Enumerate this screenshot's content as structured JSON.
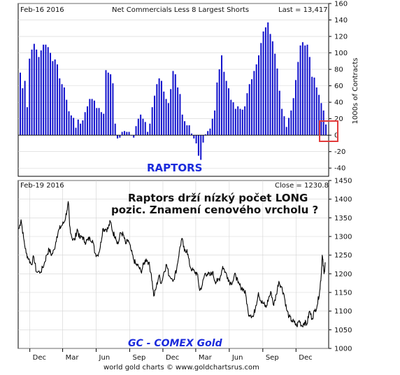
{
  "colors": {
    "bars": "#1212cc",
    "price_line": "#000000",
    "highlight_box": "#e23b3b",
    "annotation_blue": "#1b2bdc",
    "grid": "#d3d3d3"
  },
  "top_panel": {
    "date": "Feb-16  2016",
    "title": "Net Commercials Less 8 Largest Shorts",
    "last": "Last = 13,417",
    "ylabel": "1000s of Contracts",
    "annotation": "RAPTORS"
  },
  "bottom_panel": {
    "date": "Feb-19  2016",
    "close": "Close = 1230.8",
    "annotation_line1": "Raptors drží nízký počet LONG",
    "annotation_line2": "pozic. Znamení cenového vrcholu ?",
    "series_label": "GC - COMEX Gold"
  },
  "footer": "world gold charts © www.goldchartsrus.com",
  "chart_data": [
    {
      "type": "bar",
      "title": "Net Commercials Less 8 Largest Shorts",
      "ylabel": "1000s of Contracts",
      "ylim": [
        -50,
        160
      ],
      "yticks": [
        -40,
        -20,
        0,
        20,
        40,
        60,
        80,
        100,
        120,
        140,
        160
      ],
      "grid": true,
      "x_start": "2013-11-12",
      "x_end": "2016-02-16",
      "x_interval": "weekly",
      "values": [
        76,
        57,
        66,
        34,
        93,
        104,
        111,
        104,
        95,
        103,
        110,
        110,
        107,
        100,
        90,
        92,
        86,
        69,
        62,
        58,
        43,
        29,
        24,
        21,
        9,
        19,
        14,
        18,
        28,
        35,
        44,
        44,
        42,
        33,
        33,
        28,
        26,
        79,
        76,
        74,
        63,
        14,
        -4,
        -3,
        4,
        5,
        4,
        4,
        0,
        -3,
        11,
        20,
        25,
        20,
        16,
        4,
        14,
        34,
        48,
        62,
        69,
        66,
        53,
        44,
        39,
        56,
        78,
        74,
        58,
        50,
        25,
        17,
        12,
        12,
        2,
        -4,
        -10,
        -25,
        -30,
        -9,
        1,
        5,
        8,
        20,
        30,
        64,
        80,
        97,
        77,
        66,
        57,
        43,
        40,
        32,
        35,
        32,
        31,
        35,
        51,
        62,
        68,
        78,
        86,
        97,
        112,
        126,
        131,
        137,
        123,
        114,
        99,
        81,
        54,
        32,
        23,
        10,
        21,
        30,
        45,
        67,
        89,
        109,
        113,
        109,
        110,
        95,
        71,
        70,
        58,
        49,
        39,
        30,
        13
      ],
      "last": 13.417
    },
    {
      "type": "line",
      "series": [
        {
          "name": "GC - COMEX Gold"
        }
      ],
      "ylim": [
        1000,
        1450
      ],
      "yticks": [
        1000,
        1050,
        1100,
        1150,
        1200,
        1250,
        1300,
        1350,
        1400,
        1450
      ],
      "grid": true,
      "x_tick_labels": [
        "Dec",
        "Mar",
        "Jun",
        "Sep",
        "Dec",
        "Mar",
        "Jun",
        "Sep",
        "Dec"
      ],
      "close": 1230.8,
      "points": [
        [
          "2013-11-01",
          1320
        ],
        [
          "2013-11-07",
          1345
        ],
        [
          "2013-11-14",
          1295
        ],
        [
          "2013-11-21",
          1255
        ],
        [
          "2013-11-28",
          1240
        ],
        [
          "2013-12-05",
          1225
        ],
        [
          "2013-12-12",
          1245
        ],
        [
          "2013-12-19",
          1205
        ],
        [
          "2013-12-31",
          1205
        ],
        [
          "2014-01-09",
          1225
        ],
        [
          "2014-01-16",
          1250
        ],
        [
          "2014-01-23",
          1265
        ],
        [
          "2014-01-30",
          1250
        ],
        [
          "2014-02-06",
          1265
        ],
        [
          "2014-02-13",
          1300
        ],
        [
          "2014-02-20",
          1320
        ],
        [
          "2014-02-27",
          1330
        ],
        [
          "2014-03-06",
          1340
        ],
        [
          "2014-03-13",
          1370
        ],
        [
          "2014-03-17",
          1390
        ],
        [
          "2014-03-20",
          1330
        ],
        [
          "2014-03-27",
          1295
        ],
        [
          "2014-04-03",
          1290
        ],
        [
          "2014-04-10",
          1320
        ],
        [
          "2014-04-17",
          1295
        ],
        [
          "2014-04-24",
          1300
        ],
        [
          "2014-05-01",
          1285
        ],
        [
          "2014-05-08",
          1290
        ],
        [
          "2014-05-15",
          1295
        ],
        [
          "2014-05-22",
          1290
        ],
        [
          "2014-05-29",
          1255
        ],
        [
          "2014-06-05",
          1250
        ],
        [
          "2014-06-12",
          1270
        ],
        [
          "2014-06-19",
          1320
        ],
        [
          "2014-06-26",
          1320
        ],
        [
          "2014-07-03",
          1320
        ],
        [
          "2014-07-10",
          1340
        ],
        [
          "2014-07-17",
          1310
        ],
        [
          "2014-07-24",
          1300
        ],
        [
          "2014-07-31",
          1280
        ],
        [
          "2014-08-07",
          1310
        ],
        [
          "2014-08-14",
          1305
        ],
        [
          "2014-08-21",
          1280
        ],
        [
          "2014-08-28",
          1290
        ],
        [
          "2014-09-04",
          1265
        ],
        [
          "2014-09-11",
          1240
        ],
        [
          "2014-09-18",
          1225
        ],
        [
          "2014-09-25",
          1220
        ],
        [
          "2014-10-02",
          1205
        ],
        [
          "2014-10-09",
          1225
        ],
        [
          "2014-10-16",
          1240
        ],
        [
          "2014-10-23",
          1230
        ],
        [
          "2014-10-30",
          1200
        ],
        [
          "2014-11-06",
          1140
        ],
        [
          "2014-11-13",
          1165
        ],
        [
          "2014-11-20",
          1195
        ],
        [
          "2014-11-27",
          1175
        ],
        [
          "2014-12-04",
          1205
        ],
        [
          "2014-12-11",
          1225
        ],
        [
          "2014-12-18",
          1195
        ],
        [
          "2014-12-31",
          1185
        ],
        [
          "2015-01-08",
          1215
        ],
        [
          "2015-01-15",
          1260
        ],
        [
          "2015-01-22",
          1295
        ],
        [
          "2015-01-29",
          1260
        ],
        [
          "2015-02-05",
          1265
        ],
        [
          "2015-02-12",
          1225
        ],
        [
          "2015-02-19",
          1210
        ],
        [
          "2015-02-26",
          1205
        ],
        [
          "2015-03-05",
          1200
        ],
        [
          "2015-03-12",
          1155
        ],
        [
          "2015-03-19",
          1170
        ],
        [
          "2015-03-26",
          1200
        ],
        [
          "2015-04-02",
          1200
        ],
        [
          "2015-04-09",
          1195
        ],
        [
          "2015-04-16",
          1205
        ],
        [
          "2015-04-23",
          1180
        ],
        [
          "2015-04-30",
          1180
        ],
        [
          "2015-05-07",
          1190
        ],
        [
          "2015-05-14",
          1220
        ],
        [
          "2015-05-21",
          1205
        ],
        [
          "2015-05-28",
          1190
        ],
        [
          "2015-06-04",
          1175
        ],
        [
          "2015-06-11",
          1180
        ],
        [
          "2015-06-18",
          1200
        ],
        [
          "2015-06-25",
          1175
        ],
        [
          "2015-07-02",
          1165
        ],
        [
          "2015-07-09",
          1160
        ],
        [
          "2015-07-16",
          1145
        ],
        [
          "2015-07-23",
          1095
        ],
        [
          "2015-07-30",
          1090
        ],
        [
          "2015-08-06",
          1085
        ],
        [
          "2015-08-13",
          1115
        ],
        [
          "2015-08-20",
          1150
        ],
        [
          "2015-08-27",
          1125
        ],
        [
          "2015-09-03",
          1120
        ],
        [
          "2015-09-10",
          1110
        ],
        [
          "2015-09-17",
          1135
        ],
        [
          "2015-09-24",
          1150
        ],
        [
          "2015-10-01",
          1115
        ],
        [
          "2015-10-08",
          1145
        ],
        [
          "2015-10-15",
          1180
        ],
        [
          "2015-10-22",
          1165
        ],
        [
          "2015-10-29",
          1145
        ],
        [
          "2015-11-05",
          1105
        ],
        [
          "2015-11-12",
          1085
        ],
        [
          "2015-11-19",
          1075
        ],
        [
          "2015-11-26",
          1070
        ],
        [
          "2015-12-03",
          1060
        ],
        [
          "2015-12-10",
          1075
        ],
        [
          "2015-12-17",
          1060
        ],
        [
          "2015-12-24",
          1070
        ],
        [
          "2015-12-31",
          1065
        ],
        [
          "2016-01-07",
          1100
        ],
        [
          "2016-01-14",
          1080
        ],
        [
          "2016-01-21",
          1100
        ],
        [
          "2016-01-28",
          1115
        ],
        [
          "2016-02-04",
          1155
        ],
        [
          "2016-02-08",
          1195
        ],
        [
          "2016-02-11",
          1250
        ],
        [
          "2016-02-12",
          1240
        ],
        [
          "2016-02-16",
          1200
        ],
        [
          "2016-02-19",
          1230.8
        ]
      ]
    }
  ]
}
